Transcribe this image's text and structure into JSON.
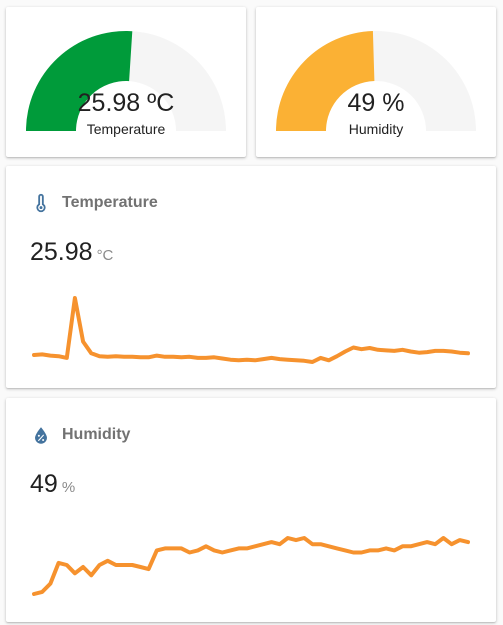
{
  "gauges": [
    {
      "value_text": "25.98 ºC",
      "label": "Temperature",
      "fraction": 0.52,
      "color": "#009b3a"
    },
    {
      "value_text": "49 %",
      "label": "Humidity",
      "fraction": 0.49,
      "color": "#fbb134"
    }
  ],
  "temperature_card": {
    "name": "Temperature",
    "icon": "thermometer-icon",
    "value": "25.98",
    "unit": "°C",
    "line_color": "#f6922e",
    "history": [
      24.7,
      24.8,
      24.6,
      24.5,
      24.2,
      34.5,
      27.0,
      25.0,
      24.5,
      24.4,
      24.5,
      24.4,
      24.4,
      24.3,
      24.3,
      24.6,
      24.4,
      24.4,
      24.3,
      24.4,
      24.2,
      24.2,
      24.3,
      24.1,
      23.9,
      23.8,
      23.9,
      23.8,
      24.0,
      24.2,
      24.0,
      23.9,
      23.8,
      23.7,
      23.5,
      24.2,
      23.8,
      24.5,
      25.3,
      26.0,
      25.7,
      25.9,
      25.6,
      25.5,
      25.4,
      25.6,
      25.3,
      25.1,
      25.2,
      25.4,
      25.4,
      25.3,
      25.1,
      25.0
    ]
  },
  "humidity_card": {
    "name": "Humidity",
    "icon": "water-percent-icon",
    "value": "49",
    "unit": "%",
    "line_color": "#f6922e",
    "history": [
      35.0,
      35.5,
      37.5,
      42.5,
      42.0,
      40.0,
      41.5,
      39.5,
      42.0,
      43.0,
      42.0,
      42.0,
      42.0,
      41.5,
      41.0,
      45.5,
      46.0,
      46.0,
      46.0,
      45.0,
      45.5,
      46.5,
      45.5,
      45.0,
      45.5,
      46.0,
      46.0,
      46.5,
      47.0,
      47.5,
      47.0,
      48.5,
      48.0,
      48.5,
      47.0,
      47.0,
      46.5,
      46.0,
      45.5,
      45.0,
      45.0,
      45.5,
      45.5,
      46.0,
      45.5,
      46.5,
      46.5,
      47.0,
      47.5,
      47.0,
      48.5,
      47.0,
      48.0,
      47.5
    ]
  }
}
